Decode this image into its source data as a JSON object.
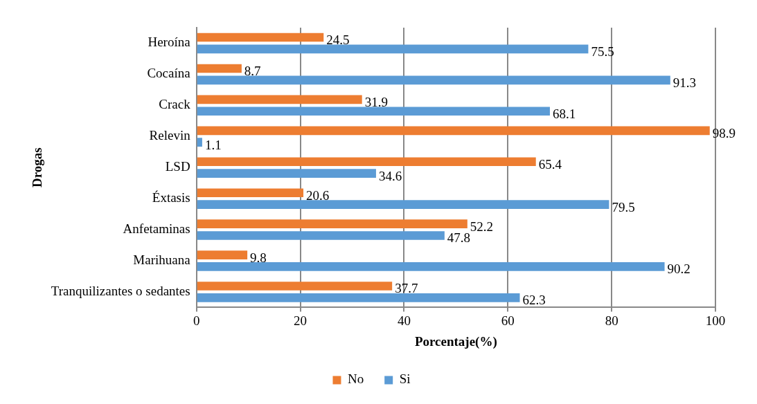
{
  "chart_data": {
    "type": "bar",
    "orientation": "horizontal",
    "xlabel": "Porcentaje(%)",
    "ylabel": "Drogas",
    "categories": [
      "Heroína",
      "Cocaína",
      "Crack",
      "Relevin",
      "LSD",
      "Éxtasis",
      "Anfetaminas",
      "Marihuana",
      "Tranquilizantes o sedantes"
    ],
    "series": [
      {
        "name": "No",
        "color": "#ed7d31",
        "values": [
          24.5,
          8.7,
          31.9,
          98.9,
          65.4,
          20.6,
          52.2,
          9.8,
          37.7
        ]
      },
      {
        "name": "Si",
        "color": "#5b9bd5",
        "values": [
          75.5,
          91.3,
          68.1,
          1.1,
          34.6,
          79.5,
          47.8,
          90.2,
          62.3
        ]
      }
    ],
    "xlim": [
      0,
      100
    ],
    "xticks": [
      0,
      20,
      40,
      60,
      80,
      100
    ],
    "grid": "x",
    "legend": "bottom",
    "data_labels": true
  }
}
